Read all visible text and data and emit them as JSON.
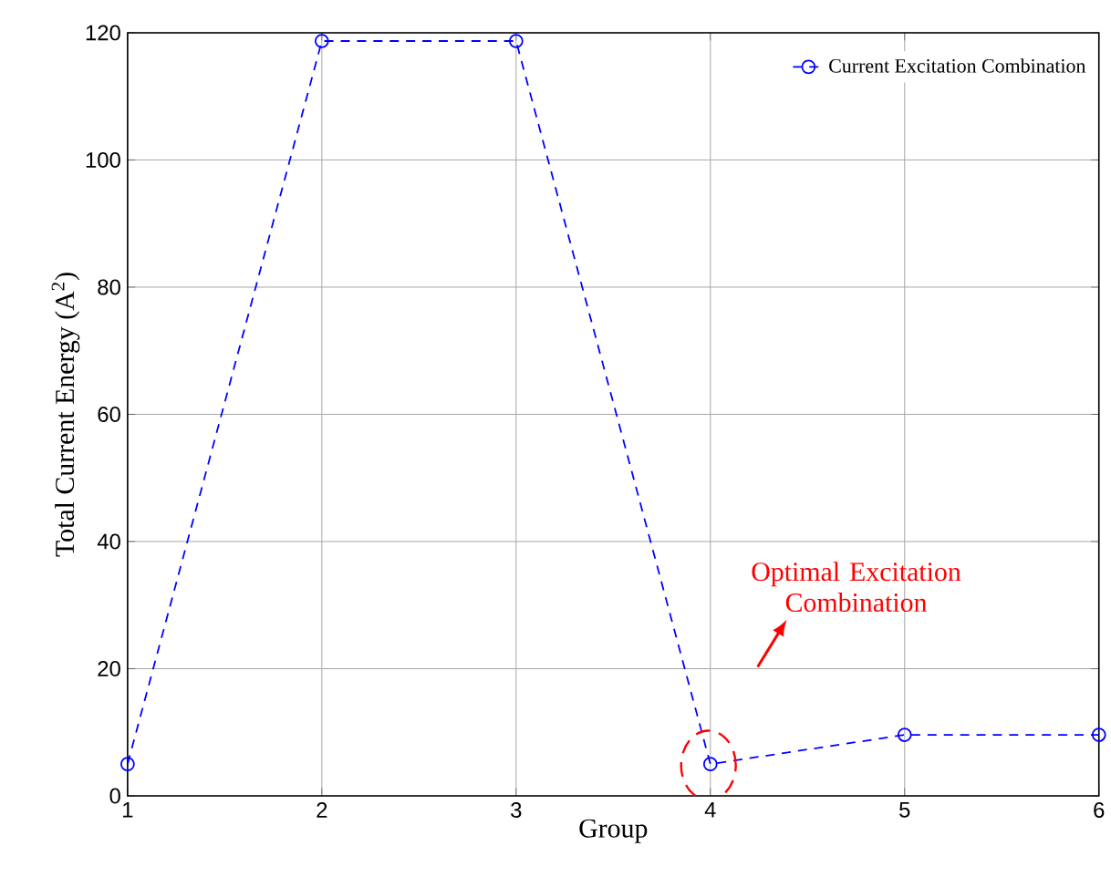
{
  "chart_data": {
    "type": "line",
    "xlabel": "Group",
    "ylabel": "Total Current Energy (A$^{2}$)",
    "x": [
      1,
      2,
      3,
      4,
      5,
      6
    ],
    "series": [
      {
        "name": "Current Excitation Combination",
        "color": "#0000ff",
        "values": [
          5,
          118.7,
          118.7,
          5,
          9.6,
          9.6
        ]
      }
    ],
    "xlim": [
      1,
      6
    ],
    "ylim": [
      0,
      120
    ],
    "xticks": [
      1,
      2,
      3,
      4,
      5,
      6
    ],
    "yticks": [
      0,
      20,
      40,
      60,
      80,
      100,
      120
    ],
    "grid": true,
    "legend": "top right",
    "marker": "circle",
    "line_style": "dashed",
    "annotations": [
      "Optimal Excitation Combination"
    ]
  }
}
